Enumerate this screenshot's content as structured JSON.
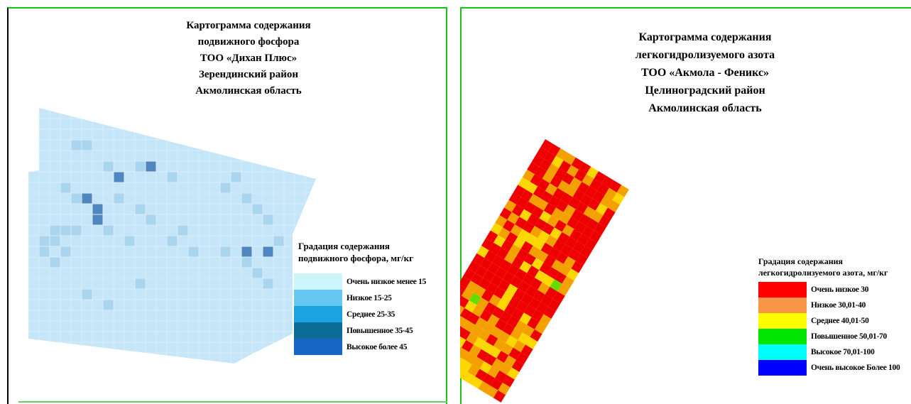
{
  "left_map": {
    "title_lines": [
      "Картограмма содержания",
      "подвижного фосфора",
      "ТОО «Дихан Плюс»",
      "Зерендинский район",
      "Акмолинская область"
    ],
    "legend_title_lines": [
      "Градация содержания",
      "подвижного фосфора, мг/кг"
    ],
    "legend": [
      {
        "label": "Очень низкое менее 15",
        "color": "#ccf5fb"
      },
      {
        "label": "Низкое 15-25",
        "color": "#66c7f2"
      },
      {
        "label": "Среднее 25-35",
        "color": "#1aa3e0"
      },
      {
        "label": "Повышенное 35-45",
        "color": "#0d6c95"
      },
      {
        "label": "Высокое более 45",
        "color": "#1766c7"
      }
    ],
    "cell_colors": {
      "base": "#c5e6f9",
      "light": "#a9d5ef",
      "dark": "#4f86c0",
      "grid": "#dcecf8"
    }
  },
  "right_map": {
    "title_lines": [
      "Картограмма содержания",
      "легкогидролизуемого азота",
      "ТОО «Акмола - Феникс»",
      "Целиноградский район",
      "Акмолинская область"
    ],
    "legend_title_lines": [
      "Градация содержания",
      "легкогидролизуемого азота, мг/кг"
    ],
    "legend": [
      {
        "label": "Очень низкое 30",
        "color": "#ff0000"
      },
      {
        "label": "Низкое 30,01-40",
        "color": "#f79646"
      },
      {
        "label": "Среднее 40,01-50",
        "color": "#ffff00"
      },
      {
        "label": "Повышенное 50,01-70",
        "color": "#00e600"
      },
      {
        "label": "Высокое 70,01-100",
        "color": "#00ffff"
      },
      {
        "label": "Очень высокое Более 100",
        "color": "#0000ff"
      }
    ],
    "cell_colors": {
      "red": "#ee0000",
      "orange": "#f4a000",
      "yellow": "#ffd700",
      "green": "#66dd00"
    }
  }
}
